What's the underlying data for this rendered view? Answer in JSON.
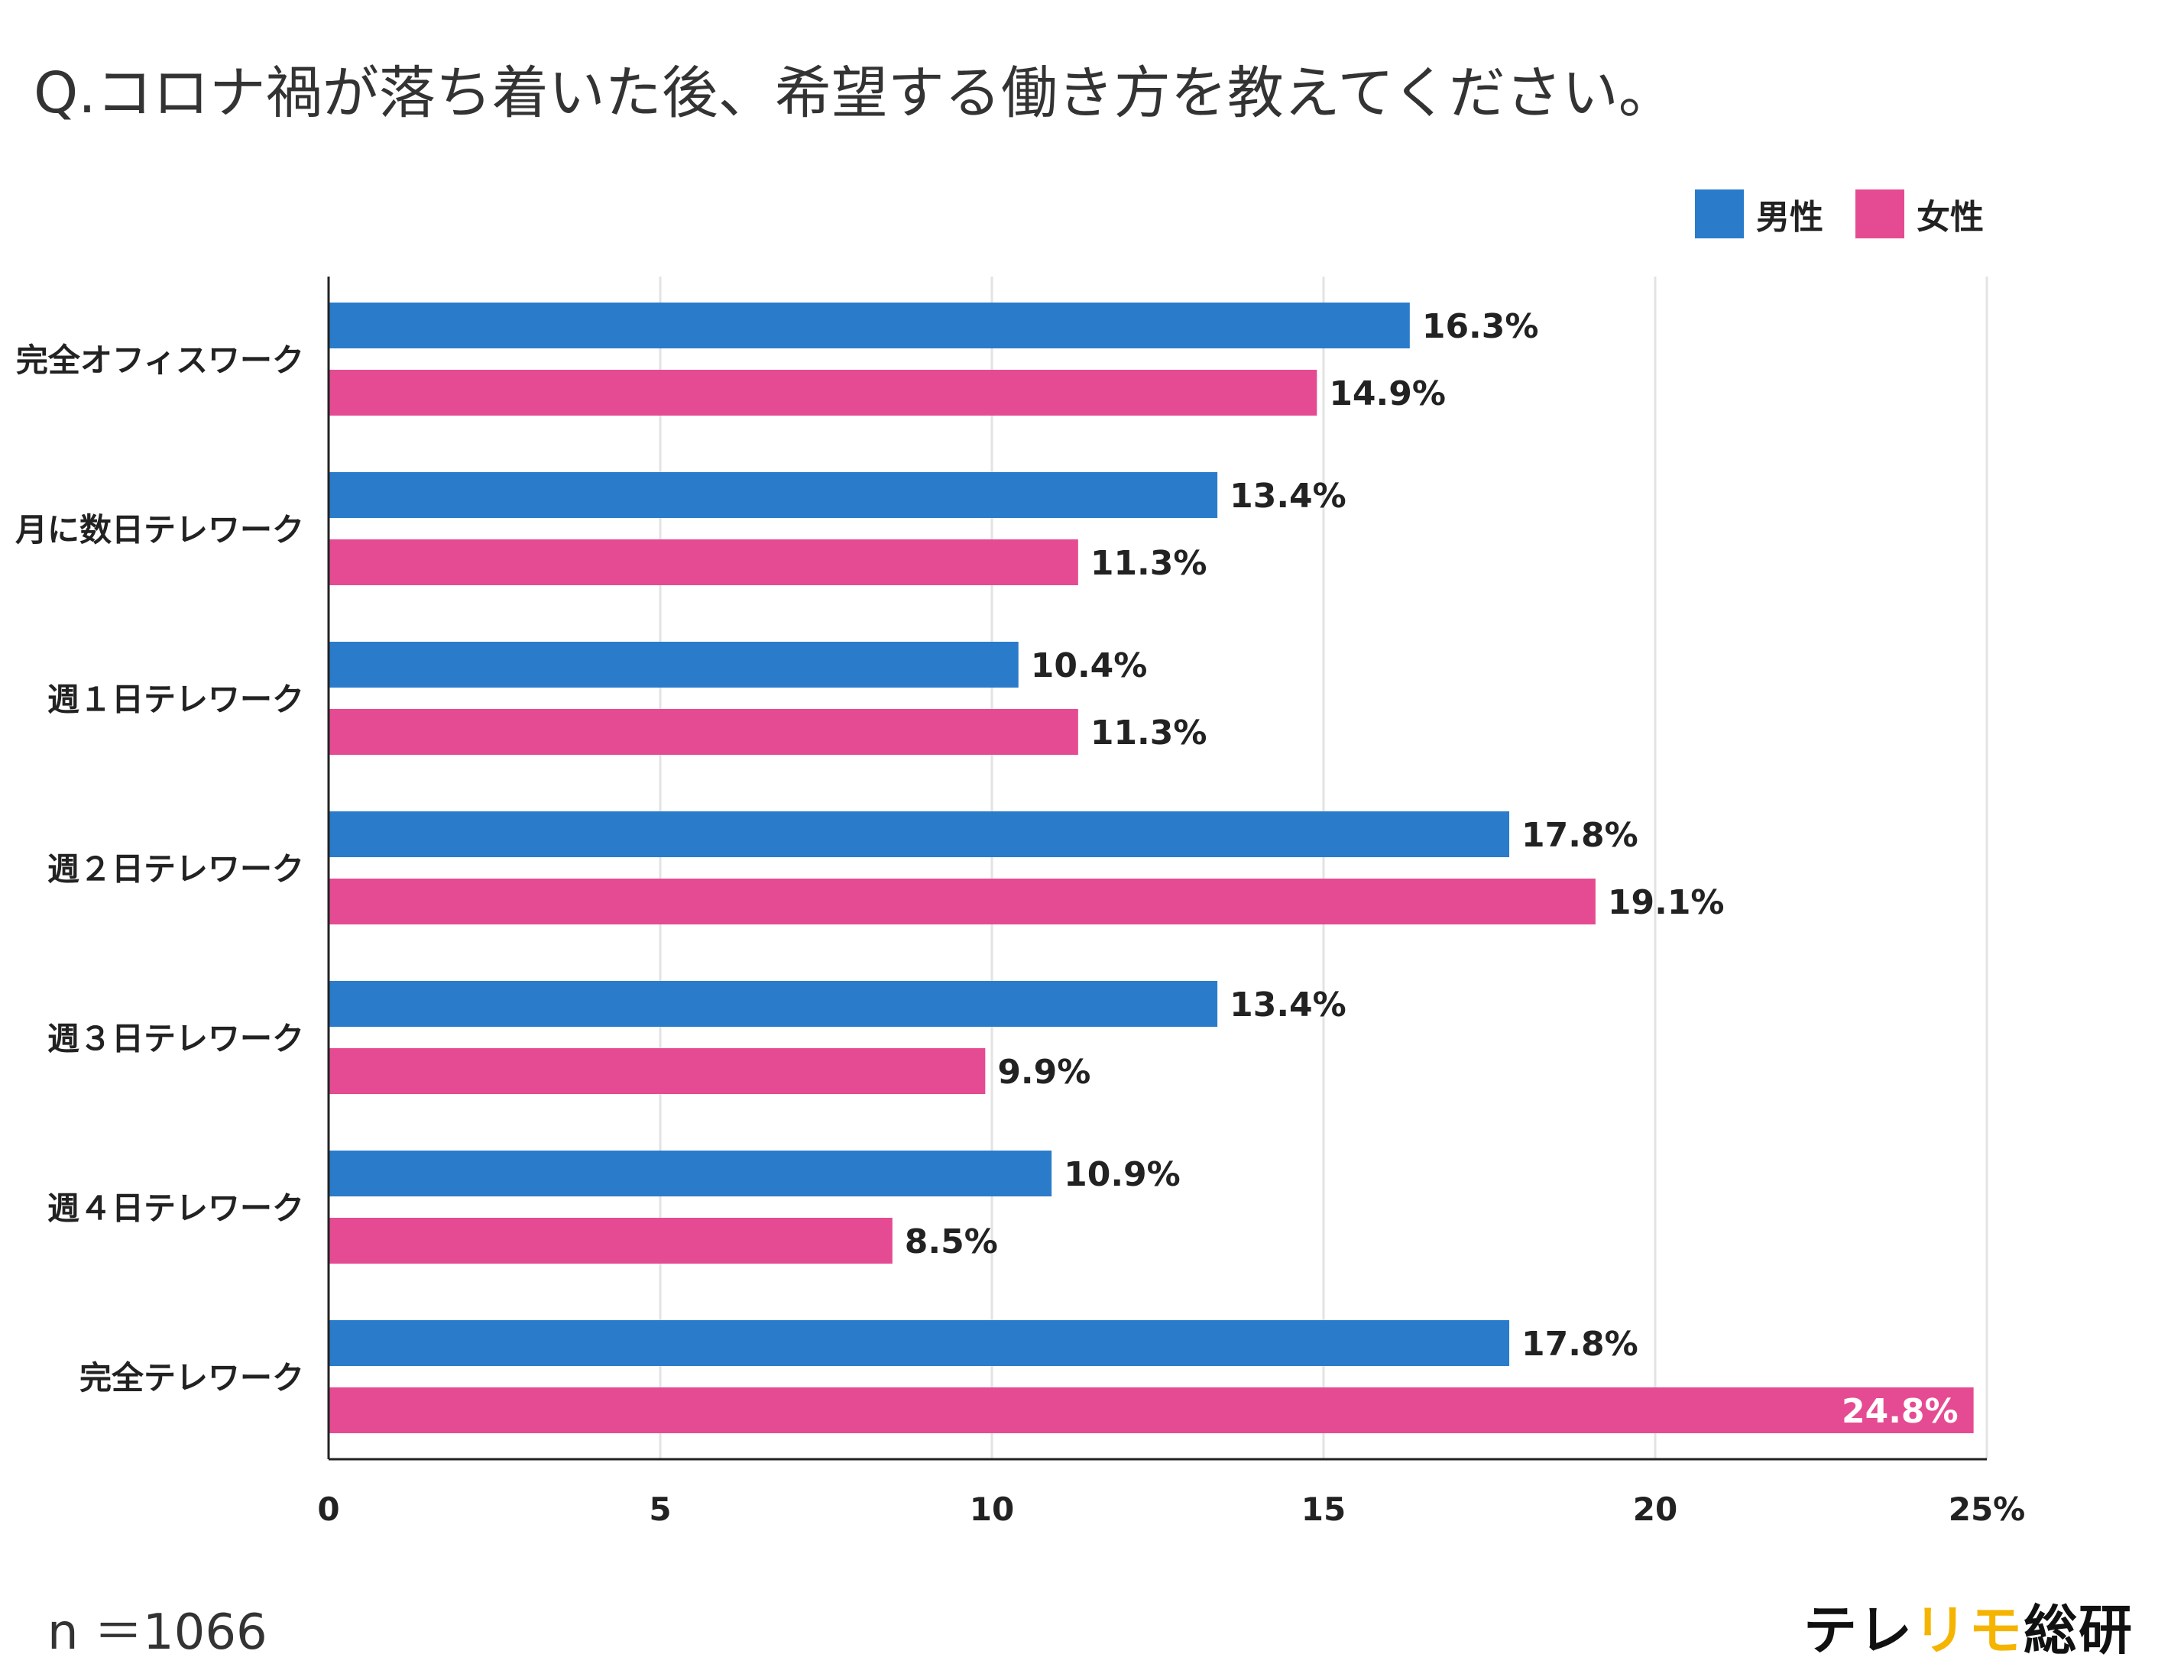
{
  "title": "Q.コロナ禍が落ち着いた後、希望する働き方を教えてください。",
  "sample_note": "n ＝1066",
  "brand": {
    "part1": "テレ",
    "part2": "リモ",
    "part3": "総研"
  },
  "colors": {
    "male": "#2a7ccb",
    "female": "#e54b92",
    "highlight": "#f5b400"
  },
  "chart_data": {
    "type": "bar",
    "orientation": "horizontal",
    "title": "Q.コロナ禍が落ち着いた後、希望する働き方を教えてください。",
    "xlabel": "",
    "ylabel": "",
    "xlim": [
      0,
      25
    ],
    "x_ticks": [
      "0",
      "5",
      "10",
      "15",
      "20",
      "25%"
    ],
    "tick_values": [
      0,
      5,
      10,
      15,
      20,
      25
    ],
    "grid": true,
    "legend": "top-right",
    "categories": [
      "完全オフィスワーク",
      "月に数日テレワーク",
      "週１日テレワーク",
      "週２日テレワーク",
      "週３日テレワーク",
      "週４日テレワーク",
      "完全テレワーク"
    ],
    "series": [
      {
        "name": "男性",
        "values": [
          16.3,
          13.4,
          10.4,
          17.8,
          13.4,
          10.9,
          17.8
        ],
        "labels": [
          "16.3%",
          "13.4%",
          "10.4%",
          "17.8%",
          "13.4%",
          "10.9%",
          "17.8%"
        ]
      },
      {
        "name": "女性",
        "values": [
          14.9,
          11.3,
          11.3,
          19.1,
          9.9,
          8.5,
          24.8
        ],
        "labels": [
          "14.9%",
          "11.3%",
          "11.3%",
          "19.1%",
          "9.9%",
          "8.5%",
          "24.8%"
        ]
      }
    ]
  }
}
